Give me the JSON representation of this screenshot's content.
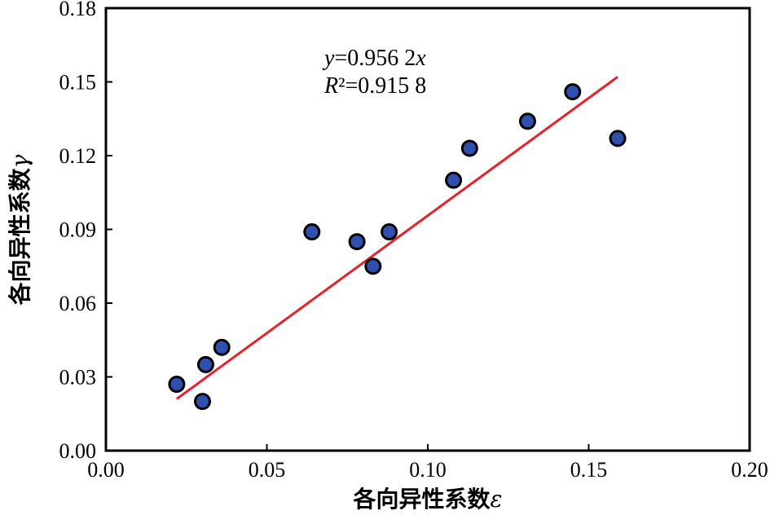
{
  "chart_data": {
    "type": "scatter",
    "xlabel": "各向异性系数",
    "xlabel_symbol": "ε",
    "ylabel": "各向异性系数",
    "ylabel_symbol": "γ",
    "xlim": [
      0.0,
      0.2
    ],
    "ylim": [
      0.0,
      0.18
    ],
    "x_ticks": [
      "0.00",
      "0.05",
      "0.10",
      "0.15",
      "0.20"
    ],
    "y_ticks": [
      "0.00",
      "0.03",
      "0.06",
      "0.09",
      "0.12",
      "0.15",
      "0.18"
    ],
    "grid": false,
    "points": [
      {
        "x": 0.022,
        "y": 0.027
      },
      {
        "x": 0.03,
        "y": 0.02
      },
      {
        "x": 0.031,
        "y": 0.035
      },
      {
        "x": 0.036,
        "y": 0.042
      },
      {
        "x": 0.064,
        "y": 0.089
      },
      {
        "x": 0.078,
        "y": 0.085
      },
      {
        "x": 0.083,
        "y": 0.075
      },
      {
        "x": 0.088,
        "y": 0.089
      },
      {
        "x": 0.108,
        "y": 0.11
      },
      {
        "x": 0.113,
        "y": 0.123
      },
      {
        "x": 0.131,
        "y": 0.134
      },
      {
        "x": 0.145,
        "y": 0.146
      },
      {
        "x": 0.159,
        "y": 0.127
      }
    ],
    "fit": {
      "equation_y": "y",
      "equation_rest": "=0.956 2",
      "equation_x": "x",
      "r2_symbol": "R",
      "r2_rest": "²=0.915 8",
      "slope": 0.9562,
      "x_range": [
        0.022,
        0.159
      ]
    },
    "colors": {
      "point_fill": "#3050b0",
      "point_stroke": "#000000",
      "fit_line": "#e8202a"
    }
  }
}
